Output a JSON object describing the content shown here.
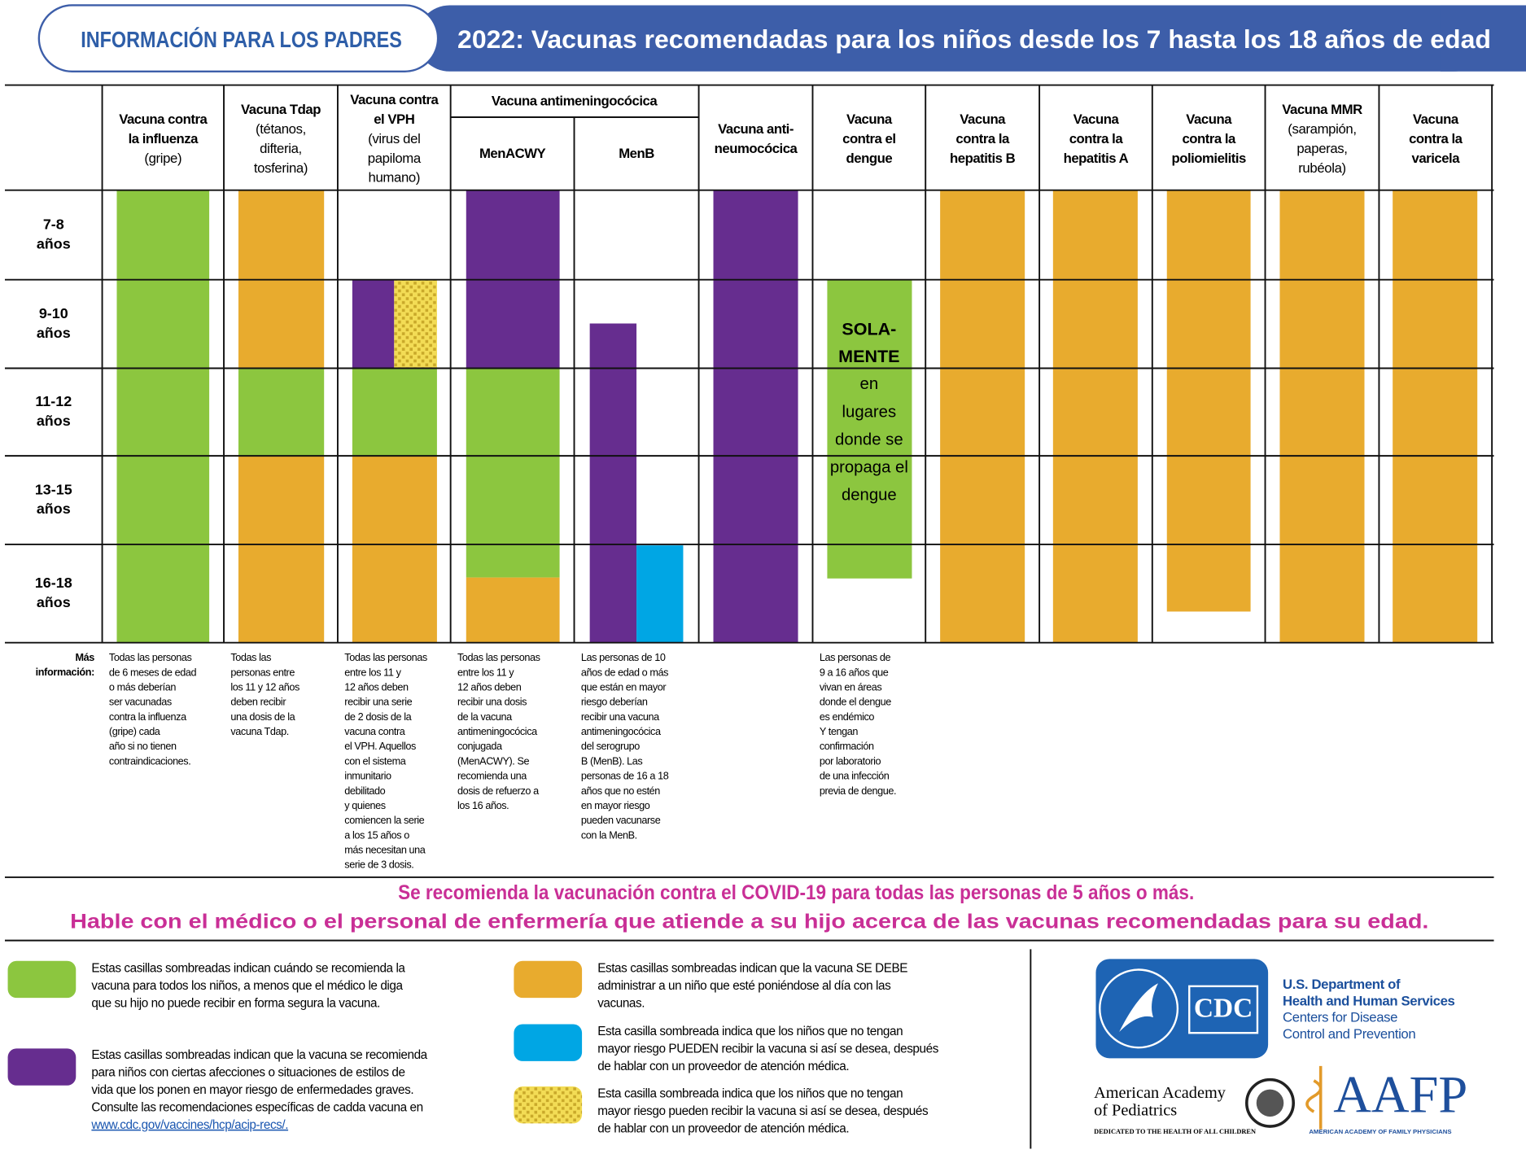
{
  "header": {
    "section": "INFORMACIÓN PARA LOS PADRES",
    "title": "2022: Vacunas recomendadas para los niños desde los 7 hasta los 18 años de edad"
  },
  "table": {
    "group_header": "Vacuna antimeningocócica",
    "rows": [
      [
        "7-8",
        "años"
      ],
      [
        "9-10",
        "años"
      ],
      [
        "11-12",
        "años"
      ],
      [
        "13-15",
        "años"
      ],
      [
        "16-18",
        "años"
      ]
    ],
    "more_info_label": [
      "Más",
      "información:"
    ],
    "columns": [
      {
        "title": [
          "Vacuna contra",
          "la influenza"
        ],
        "subtitle": [
          "(gripe)"
        ],
        "note": [
          "Todas las personas",
          "de 6 meses de edad",
          "o más deberían",
          "ser vacunadas",
          "contra la influenza",
          "(gripe) cada",
          "año si no tienen",
          "contraindicaciones."
        ]
      },
      {
        "title": [
          "Vacuna Tdap"
        ],
        "subtitle": [
          "(tétanos,",
          "difteria,",
          "tosferina)"
        ],
        "note": [
          "Todas las",
          "personas entre",
          "los 11 y 12 años",
          "deben recibir",
          "una dosis de la",
          "vacuna Tdap."
        ]
      },
      {
        "title": [
          "Vacuna contra",
          "el VPH"
        ],
        "subtitle": [
          "(virus del",
          "papiloma",
          "humano)"
        ],
        "note": [
          "Todas las personas",
          "entre los 11 y",
          "12 años deben",
          "recibir una serie",
          "de 2 dosis de la",
          "vacuna contra",
          "el VPH. Aquellos",
          "con el sistema",
          "inmunitario",
          "debilitado",
          "y quienes",
          "comiencen la serie",
          "a los 15 años o",
          "más necesitan una",
          "serie de 3 dosis."
        ]
      },
      {
        "title": [
          "MenACWY"
        ],
        "note": [
          "Todas las personas",
          "entre los 11 y",
          "12 años deben",
          "recibir una dosis",
          "de la vacuna",
          "antimeningocócica",
          "conjugada",
          "(MenACWY). Se",
          "recomienda una",
          "dosis de refuerzo a",
          "los 16 años."
        ]
      },
      {
        "title": [
          "MenB"
        ],
        "note": [
          "Las personas de 10",
          "años de edad o más",
          "que están en mayor",
          "riesgo deberían",
          "recibir una vacuna",
          "antimeningocócica",
          "del serogrupo",
          "B (MenB). Las",
          "personas de 16 a 18",
          "años que no estén",
          "en mayor riesgo",
          "pueden vacunarse",
          "con la MenB."
        ]
      },
      {
        "title": [
          "Vacuna anti-",
          "neumocócica"
        ]
      },
      {
        "title": [
          "Vacuna",
          "contra el",
          "dengue"
        ],
        "note": [
          "Las personas de",
          "9 a 16 años que",
          "vivan en áreas",
          "donde el dengue",
          "es endémico",
          "Y tengan",
          "confirmación",
          "por laboratorio",
          "de una infección",
          "previa de dengue."
        ]
      },
      {
        "title": [
          "Vacuna",
          "contra la",
          "hepatitis B"
        ]
      },
      {
        "title": [
          "Vacuna",
          "contra la",
          "hepatitis A"
        ]
      },
      {
        "title": [
          "Vacuna",
          "contra la",
          "poliomielitis"
        ]
      },
      {
        "title": [
          "Vacuna MMR"
        ],
        "subtitle": [
          "(sarampión,",
          "paperas,",
          "rubéola)"
        ]
      },
      {
        "title": [
          "Vacuna",
          "contra la",
          "varicela"
        ]
      }
    ],
    "dengue_label": {
      "bold": [
        "SOLA-",
        "MENTE"
      ],
      "text": [
        "en",
        "lugares",
        "donde se",
        "propaga el",
        "dengue"
      ]
    }
  },
  "covid": [
    "Se recomienda la vacunación contra el COVID-19 para todas las personas de 5 años o más.",
    "Hable con el médico o el personal de enfermería que atiende a su hijo acerca de las vacunas recomendadas para su edad."
  ],
  "legend": [
    {
      "lines": [
        "Estas casillas sombreadas indican cuándo se recomienda la",
        "vacuna para todos los niños, a menos que el médico le diga",
        "que su hijo no puede recibir en forma segura la vacuna."
      ]
    },
    {
      "lines": [
        "Estas casillas sombreadas indican que la vacuna se recomienda",
        "para niños con ciertas afecciones o situaciones de estilos de",
        "vida que los ponen en mayor riesgo de enfermedades graves.",
        "Consulte las recomendaciones específicas de cadda vacuna en"
      ],
      "link": "www.cdc.gov/vaccines/hcp/acip-recs/."
    },
    {
      "lines": [
        "Estas casillas sombreadas indican que la vacuna SE DEBE",
        "administrar a un niño que esté poniéndose al día con las",
        "vacunas."
      ]
    },
    {
      "lines": [
        "Esta casilla sombreada indica que los niños que no tengan",
        "mayor riesgo PUEDEN recibir la vacuna si así se desea, después",
        "de hablar con un proveedor de atención médica."
      ]
    },
    {
      "lines": [
        "Esta casilla sombreada indica que los niños que no tengan",
        "mayor riesgo pueden recibir la vacuna si así se desea, después",
        "de hablar con un proveedor de atención médica."
      ]
    }
  ],
  "logos": {
    "cdc": "CDC",
    "hhs": [
      "U.S. Department of",
      "Health and Human Services"
    ],
    "cdc_name": [
      "Centers for Disease",
      "Control and Prevention"
    ],
    "aap": [
      "American Academy",
      "of Pediatrics"
    ],
    "aap_tagline": "DEDICATED TO THE HEALTH OF ALL CHILDREN",
    "aafp": "AAFP",
    "aafp_name": "AMERICAN ACADEMY OF FAMILY PHYSICIANS"
  }
}
